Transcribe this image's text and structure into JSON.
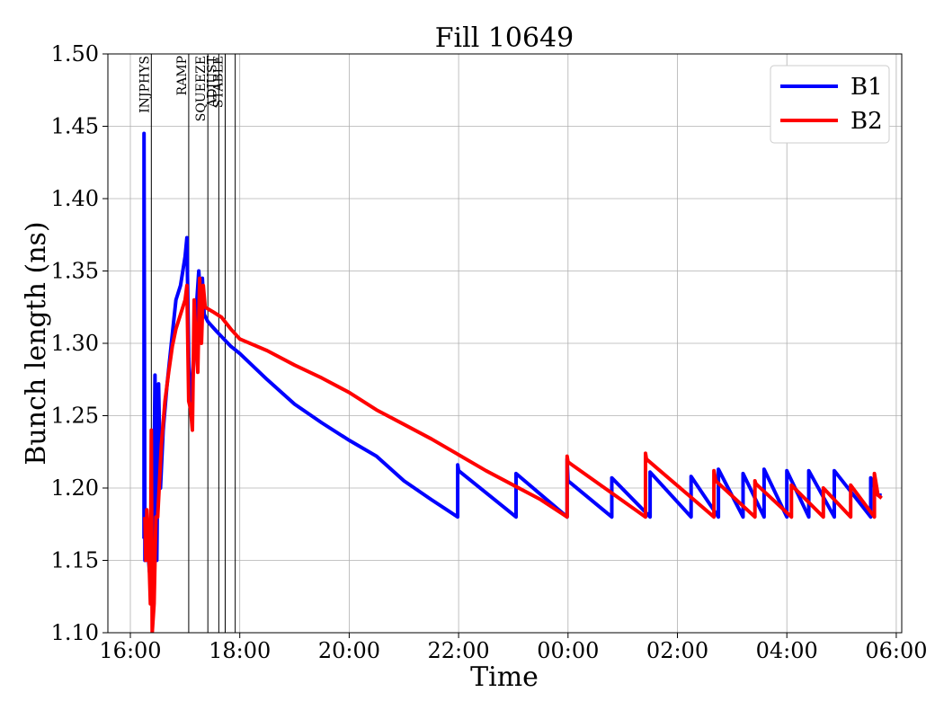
{
  "chart_data": {
    "type": "line",
    "title": "Fill 10649",
    "xlabel": "Time",
    "ylabel": "Bunch length (ns)",
    "xlim": [
      "16:00",
      "06:00"
    ],
    "ylim": [
      1.1,
      1.5
    ],
    "grid": true,
    "legend_position": "top-right",
    "x_ticks": [
      "16:00",
      "18:00",
      "20:00",
      "22:00",
      "00:00",
      "02:00",
      "04:00",
      "06:00"
    ],
    "y_ticks": [
      "1.10",
      "1.15",
      "1.20",
      "1.25",
      "1.30",
      "1.35",
      "1.40",
      "1.45",
      "1.50"
    ],
    "phases": [
      {
        "name": "INJPHYS",
        "time": "16:23"
      },
      {
        "name": "RAMP",
        "time": "17:04"
      },
      {
        "name": "SQUEEZE",
        "time": "17:25"
      },
      {
        "name": "ADJUST",
        "time": "17:37"
      },
      {
        "name": "STABLE",
        "time": "17:44"
      }
    ],
    "series": [
      {
        "name": "B1",
        "color": "#0000ff",
        "points": [
          [
            "16:15",
            1.165
          ],
          [
            "16:15",
            1.445
          ],
          [
            "16:16",
            1.15
          ],
          [
            "16:18",
            1.175
          ],
          [
            "16:19",
            1.158
          ],
          [
            "16:21",
            1.142
          ],
          [
            "16:23",
            1.17
          ],
          [
            "16:25",
            1.15
          ],
          [
            "16:27",
            1.278
          ],
          [
            "16:28",
            1.16
          ],
          [
            "16:29",
            1.15
          ],
          [
            "16:31",
            1.272
          ],
          [
            "16:33",
            1.2
          ],
          [
            "16:36",
            1.24
          ],
          [
            "16:40",
            1.27
          ],
          [
            "16:45",
            1.3
          ],
          [
            "16:50",
            1.33
          ],
          [
            "16:55",
            1.34
          ],
          [
            "17:00",
            1.36
          ],
          [
            "17:02",
            1.373
          ],
          [
            "17:04",
            1.29
          ],
          [
            "17:07",
            1.25
          ],
          [
            "17:10",
            1.3
          ],
          [
            "17:13",
            1.33
          ],
          [
            "17:15",
            1.35
          ],
          [
            "17:17",
            1.33
          ],
          [
            "17:19",
            1.345
          ],
          [
            "17:21",
            1.32
          ],
          [
            "17:25",
            1.315
          ],
          [
            "17:35",
            1.308
          ],
          [
            "17:50",
            1.298
          ],
          [
            "18:00",
            1.293
          ],
          [
            "18:30",
            1.275
          ],
          [
            "19:00",
            1.258
          ],
          [
            "19:30",
            1.245
          ],
          [
            "20:00",
            1.233
          ],
          [
            "20:30",
            1.222
          ],
          [
            "21:00",
            1.205
          ],
          [
            "21:30",
            1.192
          ],
          [
            "21:59",
            1.18
          ],
          [
            "21:59",
            1.216
          ],
          [
            "22:00",
            1.212
          ],
          [
            "23:03",
            1.18
          ],
          [
            "23:03",
            1.21
          ],
          [
            "23:59",
            1.18
          ],
          [
            "23:59",
            1.22
          ],
          [
            "00:00",
            1.205
          ],
          [
            "00:48",
            1.18
          ],
          [
            "00:48",
            1.207
          ],
          [
            "01:30",
            1.18
          ],
          [
            "01:30",
            1.211
          ],
          [
            "02:15",
            1.18
          ],
          [
            "02:15",
            1.208
          ],
          [
            "02:45",
            1.18
          ],
          [
            "02:45",
            1.213
          ],
          [
            "03:12",
            1.18
          ],
          [
            "03:12",
            1.21
          ],
          [
            "03:35",
            1.18
          ],
          [
            "03:35",
            1.213
          ],
          [
            "04:00",
            1.18
          ],
          [
            "04:00",
            1.212
          ],
          [
            "04:24",
            1.18
          ],
          [
            "04:24",
            1.212
          ],
          [
            "04:52",
            1.18
          ],
          [
            "04:52",
            1.212
          ],
          [
            "05:32",
            1.18
          ],
          [
            "05:32",
            1.207
          ],
          [
            "05:40",
            1.195
          ],
          [
            "05:44",
            1.195
          ]
        ]
      },
      {
        "name": "B2",
        "color": "#ff0000",
        "points": [
          [
            "16:16",
            1.18
          ],
          [
            "16:17",
            1.15
          ],
          [
            "16:18",
            1.185
          ],
          [
            "16:20",
            1.16
          ],
          [
            "16:22",
            1.12
          ],
          [
            "16:23",
            1.24
          ],
          [
            "16:24",
            1.1
          ],
          [
            "16:26",
            1.12
          ],
          [
            "16:28",
            1.18
          ],
          [
            "16:30",
            1.18
          ],
          [
            "16:34",
            1.23
          ],
          [
            "16:38",
            1.26
          ],
          [
            "16:42",
            1.28
          ],
          [
            "16:46",
            1.298
          ],
          [
            "16:50",
            1.31
          ],
          [
            "16:55",
            1.32
          ],
          [
            "17:00",
            1.33
          ],
          [
            "17:02",
            1.34
          ],
          [
            "17:04",
            1.26
          ],
          [
            "17:06",
            1.255
          ],
          [
            "17:08",
            1.24
          ],
          [
            "17:10",
            1.33
          ],
          [
            "17:12",
            1.3
          ],
          [
            "17:14",
            1.28
          ],
          [
            "17:16",
            1.345
          ],
          [
            "17:18",
            1.3
          ],
          [
            "17:20",
            1.34
          ],
          [
            "17:22",
            1.325
          ],
          [
            "17:30",
            1.322
          ],
          [
            "17:40",
            1.318
          ],
          [
            "17:50",
            1.31
          ],
          [
            "18:00",
            1.303
          ],
          [
            "18:30",
            1.295
          ],
          [
            "19:00",
            1.285
          ],
          [
            "19:30",
            1.276
          ],
          [
            "20:00",
            1.266
          ],
          [
            "20:30",
            1.254
          ],
          [
            "21:00",
            1.244
          ],
          [
            "21:30",
            1.234
          ],
          [
            "22:00",
            1.223
          ],
          [
            "22:30",
            1.212
          ],
          [
            "23:00",
            1.202
          ],
          [
            "23:30",
            1.192
          ],
          [
            "23:59",
            1.18
          ],
          [
            "23:59",
            1.222
          ],
          [
            "00:00",
            1.218
          ],
          [
            "01:25",
            1.18
          ],
          [
            "01:25",
            1.224
          ],
          [
            "01:26",
            1.22
          ],
          [
            "02:40",
            1.18
          ],
          [
            "02:40",
            1.212
          ],
          [
            "02:42",
            1.205
          ],
          [
            "03:25",
            1.18
          ],
          [
            "03:25",
            1.205
          ],
          [
            "03:26",
            1.203
          ],
          [
            "04:05",
            1.18
          ],
          [
            "04:05",
            1.202
          ],
          [
            "04:40",
            1.18
          ],
          [
            "04:40",
            1.2
          ],
          [
            "05:10",
            1.18
          ],
          [
            "05:10",
            1.202
          ],
          [
            "05:36",
            1.18
          ],
          [
            "05:36",
            1.21
          ],
          [
            "05:40",
            1.195
          ],
          [
            "05:44",
            1.193
          ]
        ]
      }
    ]
  }
}
